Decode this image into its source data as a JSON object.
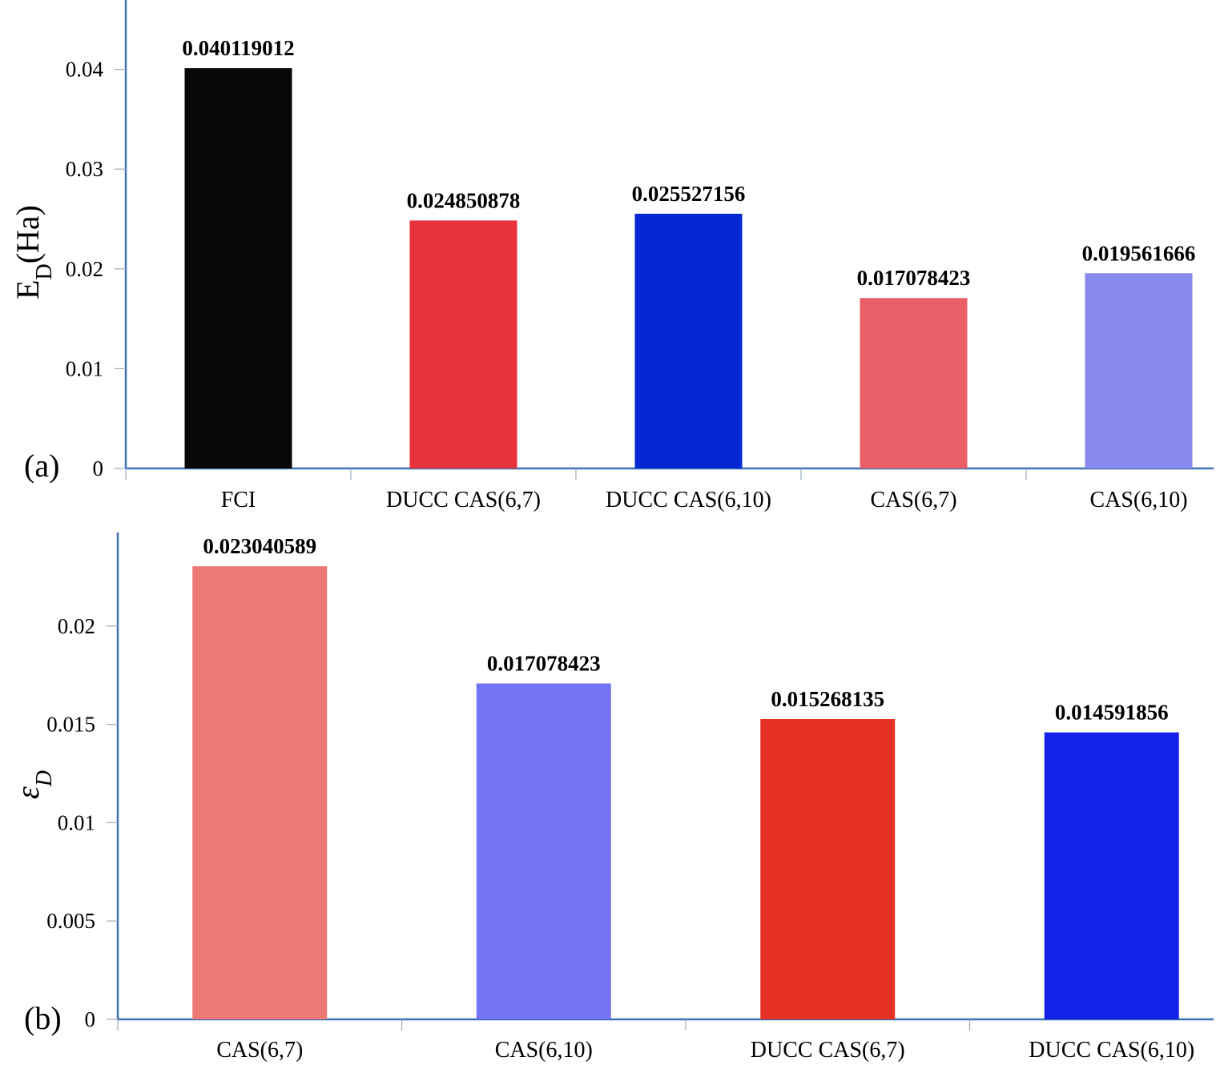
{
  "chart_data": [
    {
      "panel_label": "(a)",
      "type": "bar",
      "ylabel": "E_D(Ha)",
      "ylabel_main": "E",
      "ylabel_sub": "D",
      "ylabel_rest": "(Ha)",
      "ylim": [
        0,
        0.045
      ],
      "yticks": [
        0,
        0.01,
        0.02,
        0.03,
        0.04
      ],
      "ytick_labels": [
        "0",
        "0.01",
        "0.02",
        "0.03",
        "0.04"
      ],
      "categories": [
        "FCI",
        "DUCC CAS(6,7)",
        "DUCC CAS(6,10)",
        "CAS(6,7)",
        "CAS(6,10)"
      ],
      "values": [
        0.040119012,
        0.024850878,
        0.025527156,
        0.017078423,
        0.019561666
      ],
      "value_labels": [
        "0.040119012",
        "0.024850878",
        "0.025527156",
        "0.017078423",
        "0.019561666"
      ],
      "colors": [
        "#070707",
        "#e7313b",
        "#0328d4",
        "#eb5f68",
        "#8789ef"
      ],
      "grid": false
    },
    {
      "panel_label": "(b)",
      "type": "bar",
      "ylabel": "εD",
      "ylabel_main": "ε",
      "ylabel_sub": "D",
      "ylabel_rest": "",
      "ylim": [
        0,
        0.025
      ],
      "yticks": [
        0,
        0.005,
        0.01,
        0.015,
        0.02
      ],
      "ytick_labels": [
        "0",
        "0.005",
        "0.01",
        "0.015",
        "0.02"
      ],
      "categories": [
        "CAS(6,7)",
        "CAS(6,10)",
        "DUCC CAS(6,7)",
        "DUCC CAS(6,10)"
      ],
      "values": [
        0.023040589,
        0.017078423,
        0.015268135,
        0.014591856
      ],
      "value_labels": [
        "0.023040589",
        "0.017078423",
        "0.015268135",
        "0.014591856"
      ],
      "colors": [
        "#ee7874",
        "#7373f4",
        "#e43124",
        "#1422e9"
      ],
      "grid": false
    }
  ]
}
